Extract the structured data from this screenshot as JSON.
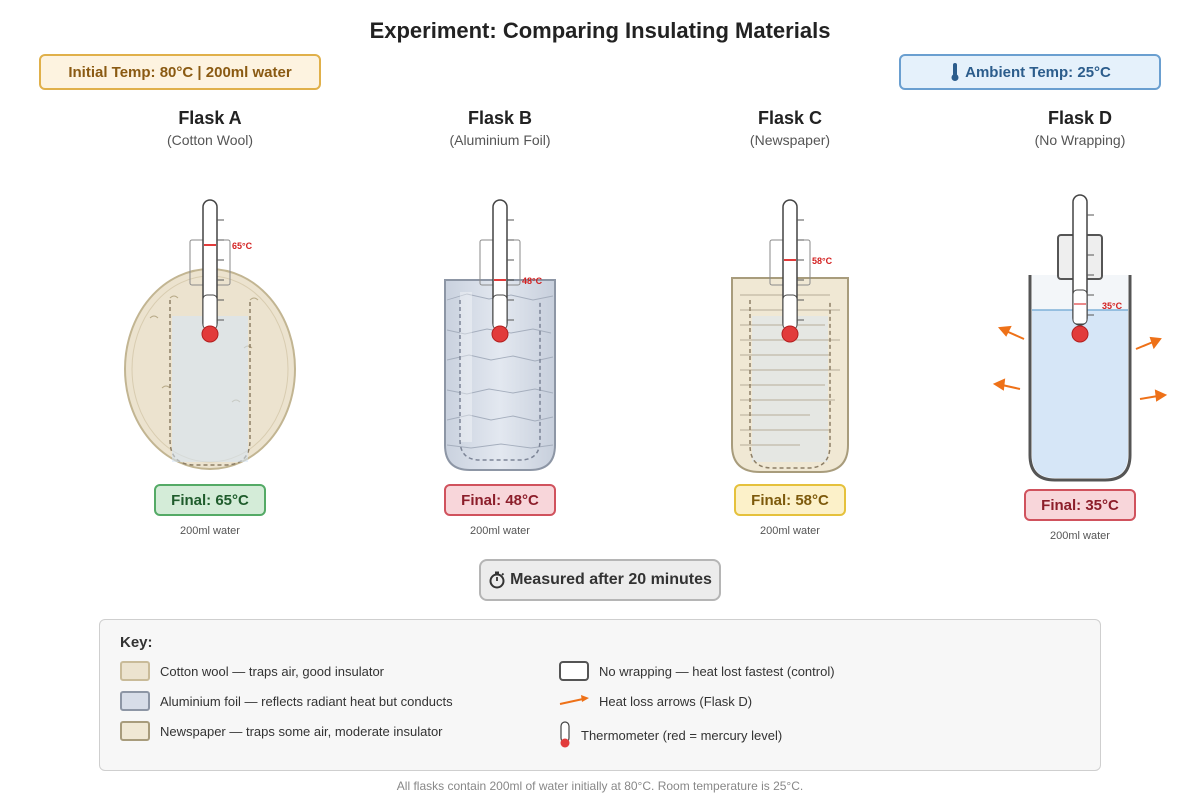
{
  "title": "Experiment: Comparing Insulating Materials",
  "badges": {
    "initial": "Initial Temp: 80°C | 200ml water",
    "ambient": "Ambient Temp: 25°C",
    "ambient_icon": "thermometer-icon"
  },
  "flasks": [
    {
      "name": "Flask A",
      "material": "(Cotton Wool)",
      "temp_label": "65°C",
      "final": "Final: 65°C",
      "volume": "200ml water"
    },
    {
      "name": "Flask B",
      "material": "(Aluminium Foil)",
      "temp_label": "48°C",
      "final": "Final: 48°C",
      "volume": "200ml water"
    },
    {
      "name": "Flask C",
      "material": "(Newspaper)",
      "temp_label": "58°C",
      "final": "Final: 58°C",
      "volume": "200ml water"
    },
    {
      "name": "Flask D",
      "material": "(No Wrapping)",
      "temp_label": "35°C",
      "final": "Final: 35°C",
      "volume": "200ml water"
    }
  ],
  "measured": {
    "icon": "stopwatch-icon",
    "label": "Measured after 20 minutes"
  },
  "key": {
    "title": "Key:",
    "items": [
      {
        "label": "Cotton wool — traps air, good insulator"
      },
      {
        "label": "Aluminium foil — reflects radiant heat but conducts"
      },
      {
        "label": "Newspaper — traps some air, moderate insulator"
      },
      {
        "label": "No wrapping — heat lost fastest (control)"
      },
      {
        "label": "Heat loss arrows (Flask D)"
      },
      {
        "label": "Thermometer (red = mercury level)"
      }
    ]
  },
  "footer": "All flasks contain 200ml of water initially at 80°C. Room temperature is 25°C.",
  "colors": {
    "cotton": "#ece3cf",
    "foil": "#d7dde8",
    "newspaper": "#f0e8d4",
    "water": "#d6e6f7",
    "mercury": "#e23b3b",
    "heat_arrow": "#ee7118",
    "final_good": "#d4ecd8",
    "final_bad": "#f8d6da",
    "final_mid": "#fcf1c9"
  }
}
